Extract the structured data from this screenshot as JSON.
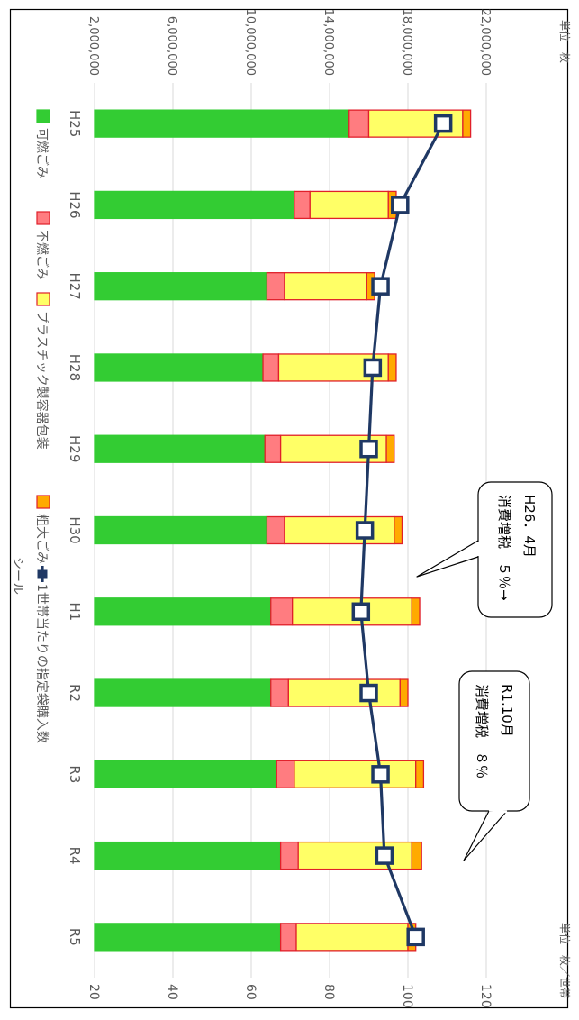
{
  "chart_data": {
    "type": "bar",
    "orientation": "rotated-90-clockwise",
    "categories": [
      "H25",
      "H26",
      "H27",
      "H28",
      "H29",
      "H30",
      "H1",
      "R2",
      "R3",
      "R4",
      "R5"
    ],
    "y_left": {
      "unit_label": "単位　枚",
      "range": [
        2000000,
        22000000
      ],
      "ticks": [
        2000000,
        6000000,
        10000000,
        14000000,
        18000000,
        22000000
      ],
      "tick_labels": [
        "2,000,000",
        "6,000,000",
        "10,000,000",
        "14,000,000",
        "18,000,000",
        "22,000,000"
      ]
    },
    "y_right": {
      "unit_label": "単位　枚／世帯",
      "range": [
        20,
        120
      ],
      "ticks": [
        20,
        40,
        60,
        80,
        100,
        120
      ],
      "tick_labels": [
        "20",
        "40",
        "60",
        "80",
        "100",
        "120"
      ]
    },
    "grid": true,
    "stacked": true,
    "series": [
      {
        "name": "可燃ごみ",
        "color": "#33cc33",
        "stroke": "#33cc33",
        "values": [
          15000000,
          12200000,
          10800000,
          10600000,
          10700000,
          10800000,
          11000000,
          11000000,
          11300000,
          11500000,
          11500000
        ]
      },
      {
        "name": "不燃ごみ",
        "color": "#ff7c80",
        "stroke": "#e0202a",
        "values": [
          1000000,
          800000,
          900000,
          800000,
          800000,
          900000,
          1100000,
          900000,
          900000,
          900000,
          800000
        ]
      },
      {
        "name": "プラスチック製容器包装",
        "color": "#ffff66",
        "stroke": "#e0202a",
        "values": [
          4800000,
          4000000,
          4200000,
          5600000,
          5400000,
          5600000,
          6100000,
          5700000,
          6200000,
          5800000,
          5700000
        ]
      },
      {
        "name": "粗大ごみ",
        "color": "#ffaa00",
        "stroke": "#e0202a",
        "values": [
          400000,
          400000,
          400000,
          400000,
          400000,
          400000,
          400000,
          400000,
          400000,
          500000,
          400000
        ]
      },
      {
        "name": "1世帯当たりの指定袋購入数",
        "type": "line",
        "axis": "right",
        "color": "#1f3864",
        "values": [
          109,
          98,
          93,
          91,
          90,
          89,
          88,
          90,
          93,
          94,
          102
        ]
      }
    ],
    "legend": {
      "placement": "bottom",
      "entries": [
        "可燃ごみ",
        "不燃ごみ",
        "プラスチック製容器包装",
        "粗大ごみ",
        "1世帯当たりの指定袋購入数"
      ],
      "entries_wrap": {
        "1世帯当たりの指定袋購入数": [
          "1世帯当たりの指定袋購入数",
          "シール"
        ]
      }
    },
    "annotations": [
      {
        "lines": [
          "H26．4月",
          "消費増税　５％→"
        ],
        "category": "H27"
      },
      {
        "lines": [
          "R1.10月",
          "消費増税　８％"
        ],
        "category": "H30"
      }
    ]
  }
}
